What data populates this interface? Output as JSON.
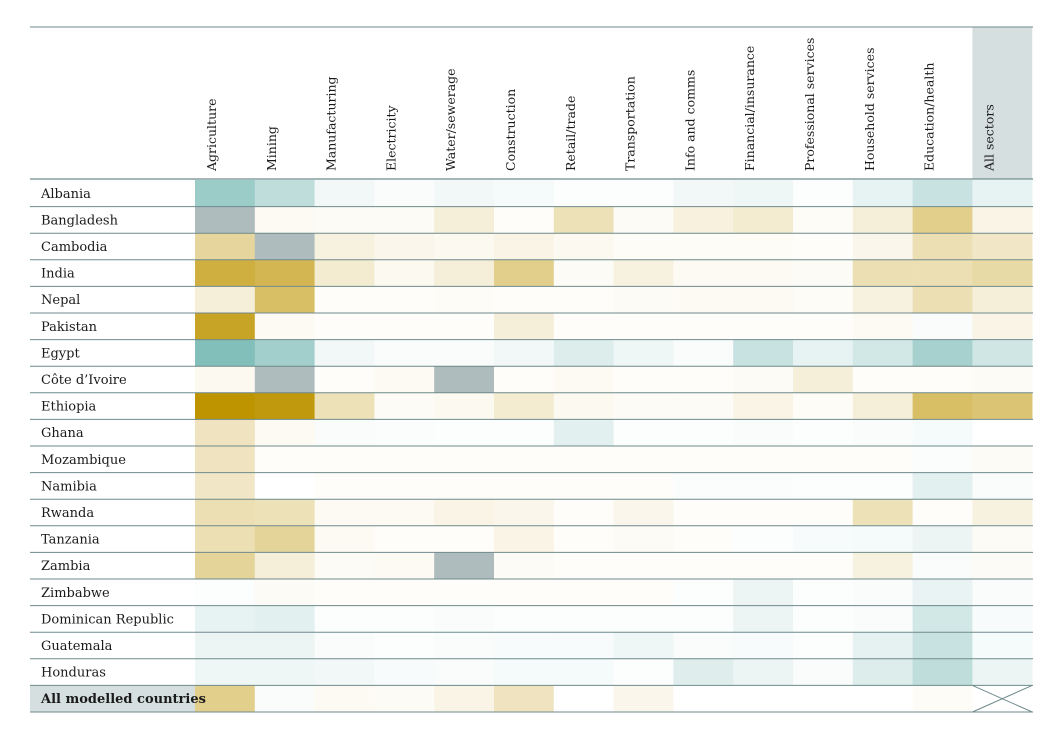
{
  "chart_data": {
    "type": "heatmap",
    "title": "",
    "legend": "none",
    "columns": [
      "Agriculture",
      "Mining",
      "Manufacturing",
      "Electricity",
      "Water/sewerage",
      "Construction",
      "Retail/trade",
      "Transportation",
      "Info and comms",
      "Financial/insurance",
      "Professional services",
      "Household services",
      "Education/health",
      "All sectors"
    ],
    "rows": [
      "Albania",
      "Bangladesh",
      "Cambodia",
      "India",
      "Nepal",
      "Pakistan",
      "Egypt",
      "Côte d’Ivoire",
      "Ethiopia",
      "Ghana",
      "Mozambique",
      "Namibia",
      "Rwanda",
      "Tanzania",
      "Zambia",
      "Zimbabwe",
      "Dominican Republic",
      "Guatemala",
      "Honduras",
      "All modelled countries"
    ],
    "scale": {
      "description": "diverging: gold = positive, teal = negative, grey = no data",
      "positive_color": "#be9400",
      "negative_color": "#5faca6",
      "neutral_color": "#ffffff",
      "missing_color": "#aebcbe",
      "highlight_column_color": "#d5dfdf",
      "highlight_row_color": "#d5dfdf",
      "range": [
        -1,
        1
      ]
    },
    "values": [
      [
        -0.62,
        -0.4,
        -0.08,
        -0.04,
        -0.08,
        -0.06,
        -0.02,
        -0.02,
        -0.08,
        -0.1,
        -0.02,
        -0.15,
        -0.35,
        -0.15
      ],
      [
        null,
        0.05,
        0.04,
        0.04,
        0.15,
        0.02,
        0.28,
        0.04,
        0.13,
        0.18,
        0.03,
        0.15,
        0.45,
        0.1
      ],
      [
        0.38,
        null,
        0.12,
        0.08,
        0.06,
        0.1,
        0.06,
        0.03,
        0.03,
        0.03,
        0.02,
        0.08,
        0.3,
        0.22
      ],
      [
        0.75,
        0.68,
        0.18,
        0.06,
        0.15,
        0.45,
        0.04,
        0.12,
        0.05,
        0.05,
        0.04,
        0.3,
        0.3,
        0.35
      ],
      [
        0.15,
        0.6,
        0.02,
        0.02,
        0.03,
        0.02,
        0.02,
        0.04,
        0.05,
        0.05,
        0.03,
        0.12,
        0.3,
        0.15
      ],
      [
        0.85,
        0.05,
        0.02,
        0.02,
        0.02,
        0.15,
        0.02,
        0.02,
        0.02,
        0.02,
        0.02,
        0.05,
        -0.04,
        0.1
      ],
      [
        -0.78,
        -0.58,
        -0.08,
        -0.04,
        -0.04,
        -0.08,
        -0.22,
        -0.1,
        -0.04,
        -0.35,
        -0.15,
        -0.28,
        -0.55,
        -0.3
      ],
      [
        0.06,
        null,
        0.02,
        0.05,
        null,
        0.02,
        0.05,
        0.02,
        0.02,
        0.04,
        0.15,
        0.02,
        0.02,
        0.04
      ],
      [
        1.0,
        0.95,
        0.28,
        0.04,
        0.06,
        0.18,
        0.06,
        0.04,
        0.04,
        0.1,
        0.03,
        0.15,
        0.6,
        0.55
      ],
      [
        0.25,
        0.05,
        -0.04,
        -0.03,
        -0.02,
        -0.02,
        -0.18,
        -0.02,
        -0.02,
        -0.04,
        -0.02,
        -0.04,
        -0.06,
        0.0
      ],
      [
        0.25,
        0.02,
        0.02,
        0.02,
        0.02,
        0.02,
        0.02,
        0.02,
        0.02,
        0.02,
        0.02,
        0.02,
        -0.03,
        0.04
      ],
      [
        0.22,
        0.0,
        0.02,
        0.02,
        0.02,
        0.02,
        0.02,
        0.02,
        -0.03,
        -0.03,
        -0.02,
        -0.02,
        -0.18,
        -0.04
      ],
      [
        0.3,
        0.28,
        0.05,
        0.05,
        0.1,
        0.08,
        0.02,
        0.08,
        0.02,
        0.02,
        0.02,
        0.28,
        0.02,
        0.12
      ],
      [
        0.3,
        0.4,
        0.05,
        0.02,
        0.02,
        0.1,
        0.02,
        0.04,
        0.02,
        -0.02,
        -0.05,
        -0.06,
        -0.12,
        0.04
      ],
      [
        0.4,
        0.15,
        0.04,
        0.05,
        null,
        0.04,
        0.02,
        0.02,
        0.02,
        0.02,
        0.02,
        0.12,
        -0.04,
        0.04
      ],
      [
        -0.02,
        0.04,
        0.02,
        0.02,
        0.02,
        0.02,
        0.02,
        0.02,
        -0.02,
        -0.12,
        -0.02,
        -0.04,
        -0.14,
        -0.04
      ],
      [
        -0.15,
        -0.18,
        -0.02,
        -0.02,
        -0.04,
        -0.02,
        -0.02,
        -0.02,
        -0.02,
        -0.12,
        -0.02,
        -0.04,
        -0.28,
        -0.05
      ],
      [
        -0.12,
        -0.12,
        -0.04,
        -0.02,
        -0.04,
        -0.05,
        -0.05,
        -0.1,
        -0.04,
        -0.05,
        -0.02,
        -0.16,
        -0.35,
        -0.06
      ],
      [
        -0.1,
        -0.1,
        -0.08,
        -0.05,
        -0.04,
        -0.06,
        -0.06,
        -0.02,
        -0.2,
        -0.12,
        -0.04,
        -0.22,
        -0.4,
        -0.12
      ],
      [
        0.45,
        -0.04,
        0.05,
        0.04,
        0.1,
        0.25,
        0.0,
        0.08,
        0.0,
        0.0,
        0.0,
        0.0,
        0.03,
        null
      ]
    ]
  }
}
